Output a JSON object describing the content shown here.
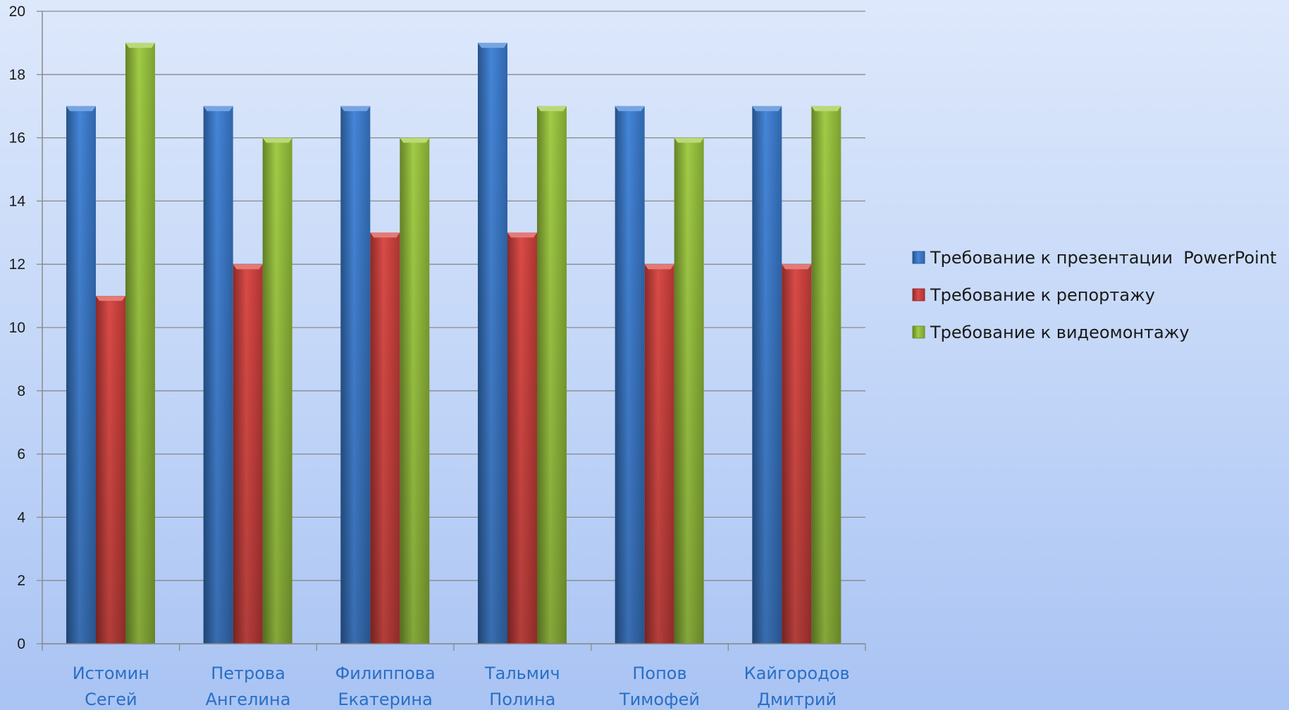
{
  "chart_data": {
    "type": "bar",
    "categories": [
      [
        "Истомин",
        "Сегей"
      ],
      [
        "Петрова",
        "Ангелина"
      ],
      [
        "Филиппова",
        "Екатерина"
      ],
      [
        "Тальмич",
        "Полина"
      ],
      [
        "Попов",
        "Тимофей"
      ],
      [
        "Кайгородов",
        "Дмитрий"
      ]
    ],
    "series": [
      {
        "name": "Требование к презентации  PowerPoint",
        "values": [
          17,
          17,
          17,
          19,
          17,
          17
        ],
        "color": "#3b7fd6"
      },
      {
        "name": "Требование к репортажу",
        "values": [
          11,
          12,
          13,
          13,
          12,
          12
        ],
        "color": "#d8413d"
      },
      {
        "name": "Требование к видеомонтажу",
        "values": [
          19,
          16,
          16,
          17,
          16,
          17
        ],
        "color": "#9cc93c"
      }
    ],
    "ylim": [
      0,
      20
    ],
    "yticks": [
      0,
      2,
      4,
      6,
      8,
      10,
      12,
      14,
      16,
      18,
      20
    ],
    "grid": true,
    "legend_position": "right"
  }
}
